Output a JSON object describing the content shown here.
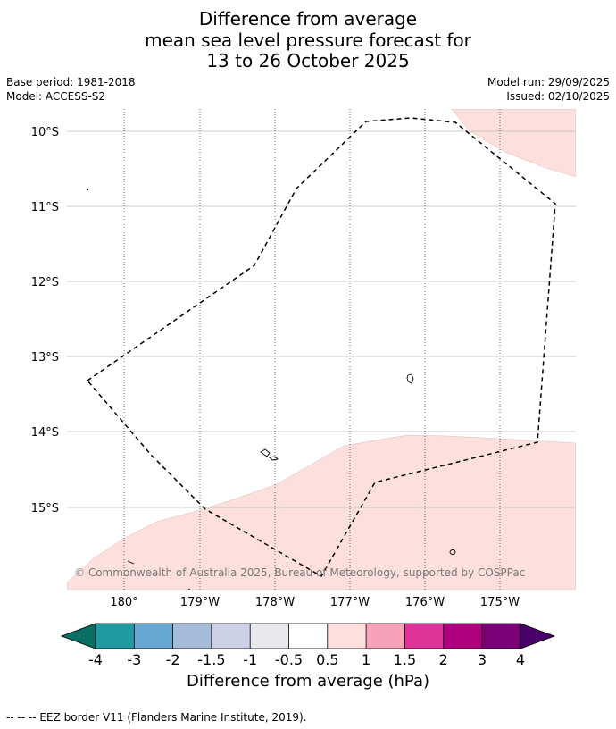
{
  "title": {
    "line1": "Difference from average",
    "line2": "mean sea level pressure forecast for",
    "line3": "13 to 26 October 2025"
  },
  "meta": {
    "base_period": "Base period: 1981-2018",
    "model": "Model: ACCESS-S2",
    "model_run": "Model run: 29/09/2025",
    "issued": "Issued: 02/10/2025"
  },
  "map": {
    "lat_labels": [
      "10°S",
      "11°S",
      "12°S",
      "13°S",
      "14°S",
      "15°S"
    ],
    "lon_labels": [
      "180°",
      "179°W",
      "178°W",
      "177°W",
      "176°W",
      "175°W"
    ],
    "copyright": "© Commonwealth of Australia 2025, Bureau of Meteorology, supported by COSPPac",
    "anomaly_fill_color": "#fde0de",
    "grid_color": "#bbbbbb"
  },
  "colorbar": {
    "labels": [
      "-4",
      "-3",
      "-2",
      "-1.5",
      "-1",
      "-0.5",
      "0.5",
      "1",
      "1.5",
      "2",
      "3",
      "4"
    ],
    "colors": [
      "#0b6e63",
      "#1f9aa3",
      "#66a8d1",
      "#a6bada",
      "#cdd0e6",
      "#e8e8ec",
      "#ffffff",
      "#fde0de",
      "#f7a1bb",
      "#dd3497",
      "#ae017e",
      "#7a0177",
      "#49006a"
    ],
    "title": "Difference from average (hPa)"
  },
  "footer": {
    "legend": "--  --  -- EEZ border V11 (Flanders Marine Institute, 2019)."
  }
}
